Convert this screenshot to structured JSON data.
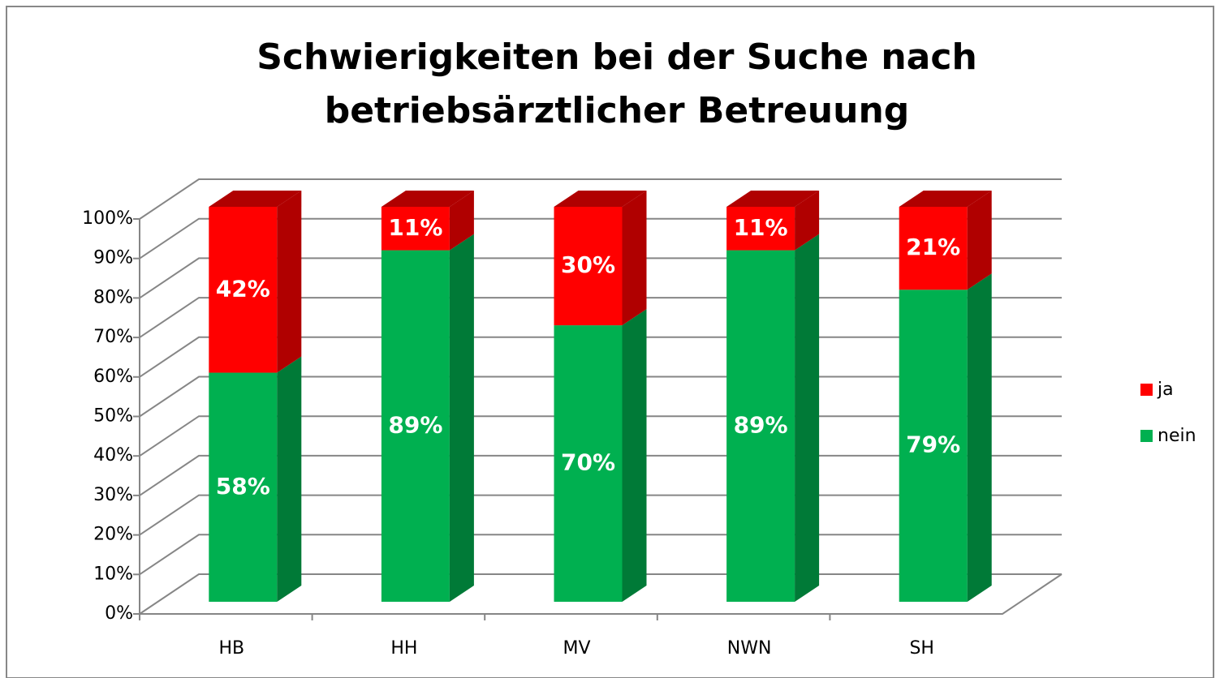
{
  "chart_data": {
    "type": "bar",
    "stacked": true,
    "three_d": true,
    "title": "Schwierigkeiten bei der Suche nach betriebsärztlicher Betreuung",
    "categories": [
      "HB",
      "HH",
      "MV",
      "NWN",
      "SH"
    ],
    "series": [
      {
        "name": "nein",
        "color": "#00b050",
        "side_color": "#007a37",
        "values": [
          58,
          89,
          70,
          89,
          79
        ],
        "value_labels": [
          "58%",
          "89%",
          "70%",
          "89%",
          "79%"
        ]
      },
      {
        "name": "ja",
        "color": "#ff0000",
        "side_color": "#b00000",
        "values": [
          42,
          11,
          30,
          11,
          21
        ],
        "value_labels": [
          "42%",
          "11%",
          "30%",
          "11%",
          "21%"
        ]
      }
    ],
    "ylim": [
      0,
      100
    ],
    "yticks": [
      {
        "value": 0,
        "label": "0%"
      },
      {
        "value": 10,
        "label": "10%"
      },
      {
        "value": 20,
        "label": "20%"
      },
      {
        "value": 30,
        "label": "30%"
      },
      {
        "value": 40,
        "label": "40%"
      },
      {
        "value": 50,
        "label": "50%"
      },
      {
        "value": 60,
        "label": "60%"
      },
      {
        "value": 70,
        "label": "70%"
      },
      {
        "value": 80,
        "label": "80%"
      },
      {
        "value": 90,
        "label": "90%"
      },
      {
        "value": 100,
        "label": "100%"
      }
    ],
    "grid": true,
    "legend": "right"
  }
}
